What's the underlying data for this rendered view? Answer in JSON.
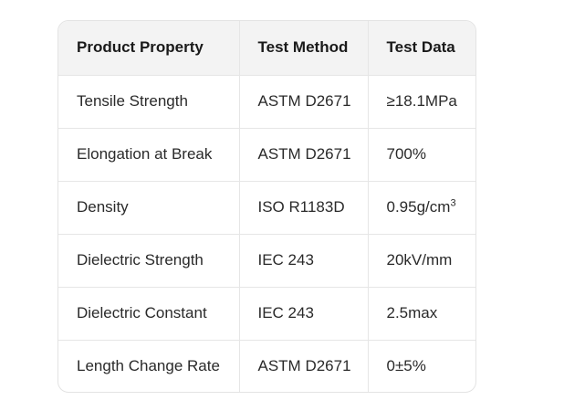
{
  "table": {
    "headers": [
      "Product Property",
      "Test Method",
      "Test Data"
    ],
    "rows": [
      {
        "property": "Tensile Strength",
        "method": "ASTM D2671",
        "data": "≥18.1MPa"
      },
      {
        "property": "Elongation at Break",
        "method": "ASTM D2671",
        "data": "700%"
      },
      {
        "property": "Density",
        "method": "ISO R1183D",
        "data": "0.95g/cm",
        "data_sup": "3"
      },
      {
        "property": "Dielectric Strength",
        "method": "IEC 243",
        "data": "20kV/mm"
      },
      {
        "property": "Dielectric Constant",
        "method": "IEC 243",
        "data": "2.5max"
      },
      {
        "property": "Length Change Rate",
        "method": "ASTM D2671",
        "data": "0±5%"
      }
    ]
  }
}
